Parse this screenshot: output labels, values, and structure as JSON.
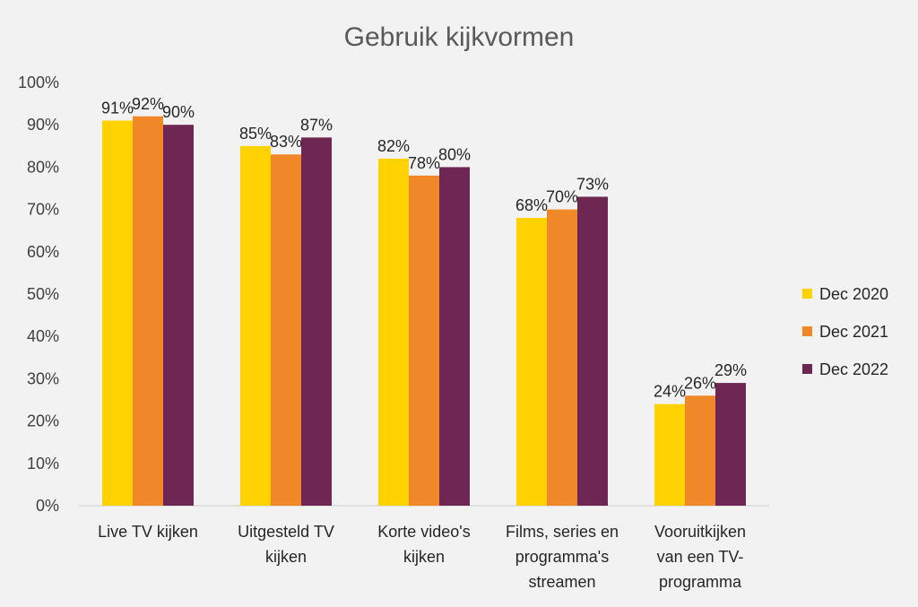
{
  "chart_data": {
    "type": "bar",
    "title": "Gebruik kijkvormen",
    "xlabel": "",
    "ylabel": "",
    "ylim": [
      0,
      100
    ],
    "yticks": [
      "0%",
      "10%",
      "20%",
      "30%",
      "40%",
      "50%",
      "60%",
      "70%",
      "80%",
      "90%",
      "100%"
    ],
    "categories": [
      [
        "Live TV kijken"
      ],
      [
        "Uitgesteld TV",
        "kijken"
      ],
      [
        "Korte video's",
        "kijken"
      ],
      [
        "Films, series en",
        "programma's",
        "streamen"
      ],
      [
        "Vooruitkijken",
        "van een TV-",
        "programma"
      ]
    ],
    "series": [
      {
        "name": "Dec 2020",
        "color": "#ffd200",
        "values": [
          91,
          85,
          82,
          68,
          24
        ],
        "labels": [
          "91%",
          "85%",
          "82%",
          "68%",
          "24%"
        ]
      },
      {
        "name": "Dec 2021",
        "color": "#f0882a",
        "values": [
          92,
          83,
          78,
          70,
          26
        ],
        "labels": [
          "92%",
          "83%",
          "78%",
          "70%",
          "26%"
        ]
      },
      {
        "name": "Dec 2022",
        "color": "#6e2752",
        "values": [
          90,
          87,
          80,
          73,
          29
        ],
        "labels": [
          "90%",
          "87%",
          "80%",
          "73%",
          "29%"
        ]
      }
    ],
    "grid": false,
    "legend": "right"
  }
}
